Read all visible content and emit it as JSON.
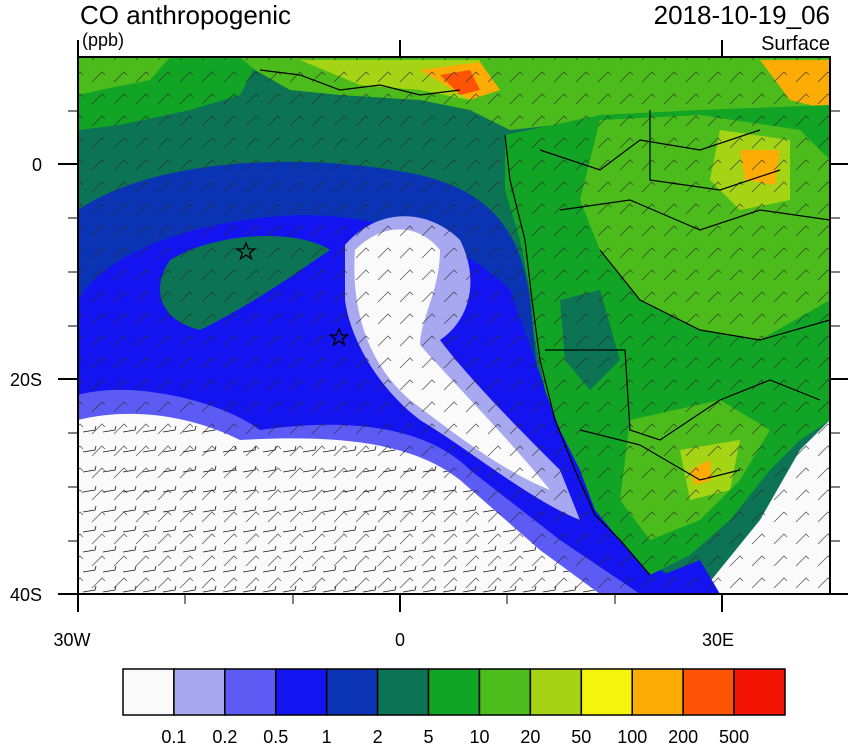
{
  "header": {
    "title": "CO anthropogenic",
    "units": "(ppb)",
    "datetime": "2018-10-19_06",
    "level": "Surface"
  },
  "map": {
    "lon_range": [
      -30,
      40
    ],
    "lat_range": [
      -40,
      10
    ],
    "lat_tick_labels": [
      {
        "lat": 0,
        "label": "0"
      },
      {
        "lat": -20,
        "label": "20S"
      },
      {
        "lat": -40,
        "label": "40S"
      }
    ],
    "lon_tick_labels": [
      {
        "lon": -30,
        "label": "30W"
      },
      {
        "lon": 0,
        "label": "0"
      },
      {
        "lon": 30,
        "label": "30E"
      }
    ],
    "markers": [
      {
        "type": "star",
        "lon": -15,
        "lat": -8
      },
      {
        "type": "star",
        "lon": -6,
        "lat": -16
      }
    ],
    "wind_barbs": true
  },
  "colorbar": {
    "colors": [
      "#fafafa",
      "#a8a8f0",
      "#5c5cf4",
      "#1414f0",
      "#0a34b4",
      "#0c7454",
      "#12a424",
      "#4cbc1c",
      "#a4d414",
      "#f4f40c",
      "#fcac04",
      "#fc5404",
      "#f41404"
    ],
    "labels": [
      "0.1",
      "0.2",
      "0.5",
      "1",
      "2",
      "5",
      "10",
      "20",
      "50",
      "100",
      "200",
      "500"
    ]
  }
}
